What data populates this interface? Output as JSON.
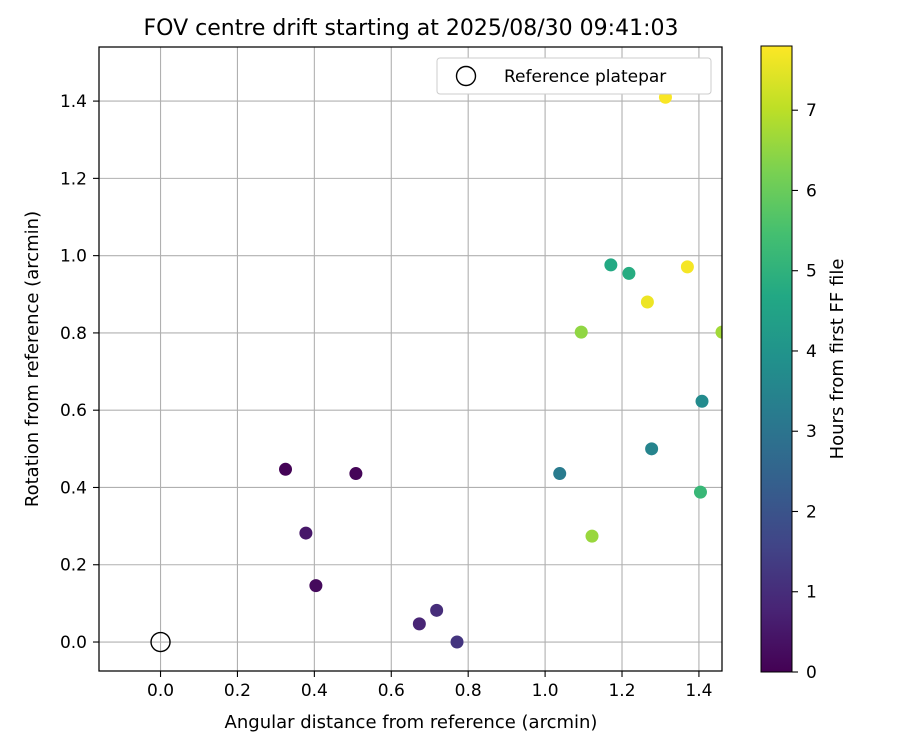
{
  "chart_data": {
    "type": "scatter",
    "title": "FOV centre drift starting at 2025/08/30 09:41:03",
    "xlabel": "Angular distance from reference (arcmin)",
    "ylabel": "Rotation from reference (arcmin)",
    "xlim": [
      -0.16,
      1.46
    ],
    "ylim": [
      -0.075,
      1.54
    ],
    "xticks": [
      0.0,
      0.2,
      0.4,
      0.6,
      0.8,
      1.0,
      1.2,
      1.4
    ],
    "xtick_labels": [
      "0.0",
      "0.2",
      "0.4",
      "0.6",
      "0.8",
      "1.0",
      "1.2",
      "1.4"
    ],
    "yticks": [
      0.0,
      0.2,
      0.4,
      0.6,
      0.8,
      1.0,
      1.2,
      1.4
    ],
    "ytick_labels": [
      "0.0",
      "0.2",
      "0.4",
      "0.6",
      "0.8",
      "1.0",
      "1.2",
      "1.4"
    ],
    "grid": true,
    "legend": {
      "placement": "upper-right",
      "entries": [
        "Reference platepar"
      ]
    },
    "reference": {
      "x": 0.0,
      "y": 0.0,
      "marker": "open-circle",
      "name": "Reference platepar"
    },
    "colorbar": {
      "label": "Hours from first FF file",
      "colormap": "viridis",
      "range": [
        0,
        7.8
      ],
      "ticks": [
        0,
        1,
        2,
        3,
        4,
        5,
        6,
        7
      ],
      "tick_labels": [
        "0",
        "1",
        "2",
        "3",
        "4",
        "5",
        "6",
        "7"
      ]
    },
    "points": [
      {
        "x": 0.325,
        "y": 0.447,
        "hours": 0.05
      },
      {
        "x": 0.508,
        "y": 0.436,
        "hours": 0.1
      },
      {
        "x": 0.404,
        "y": 0.146,
        "hours": 0.2
      },
      {
        "x": 0.378,
        "y": 0.282,
        "hours": 0.5
      },
      {
        "x": 0.673,
        "y": 0.047,
        "hours": 0.8
      },
      {
        "x": 0.718,
        "y": 0.082,
        "hours": 1.0
      },
      {
        "x": 0.771,
        "y": 0.0,
        "hours": 1.2
      },
      {
        "x": 1.038,
        "y": 0.436,
        "hours": 3.2
      },
      {
        "x": 1.277,
        "y": 0.5,
        "hours": 3.5
      },
      {
        "x": 1.408,
        "y": 0.623,
        "hours": 3.7
      },
      {
        "x": 1.171,
        "y": 0.976,
        "hours": 4.7
      },
      {
        "x": 1.218,
        "y": 0.954,
        "hours": 4.8
      },
      {
        "x": 1.404,
        "y": 0.388,
        "hours": 5.2
      },
      {
        "x": 1.094,
        "y": 0.802,
        "hours": 6.5
      },
      {
        "x": 1.122,
        "y": 0.274,
        "hours": 6.6
      },
      {
        "x": 1.46,
        "y": 0.802,
        "hours": 6.7
      },
      {
        "x": 1.266,
        "y": 0.88,
        "hours": 7.6
      },
      {
        "x": 1.37,
        "y": 0.971,
        "hours": 7.7
      },
      {
        "x": 1.313,
        "y": 1.41,
        "hours": 7.75
      }
    ]
  }
}
